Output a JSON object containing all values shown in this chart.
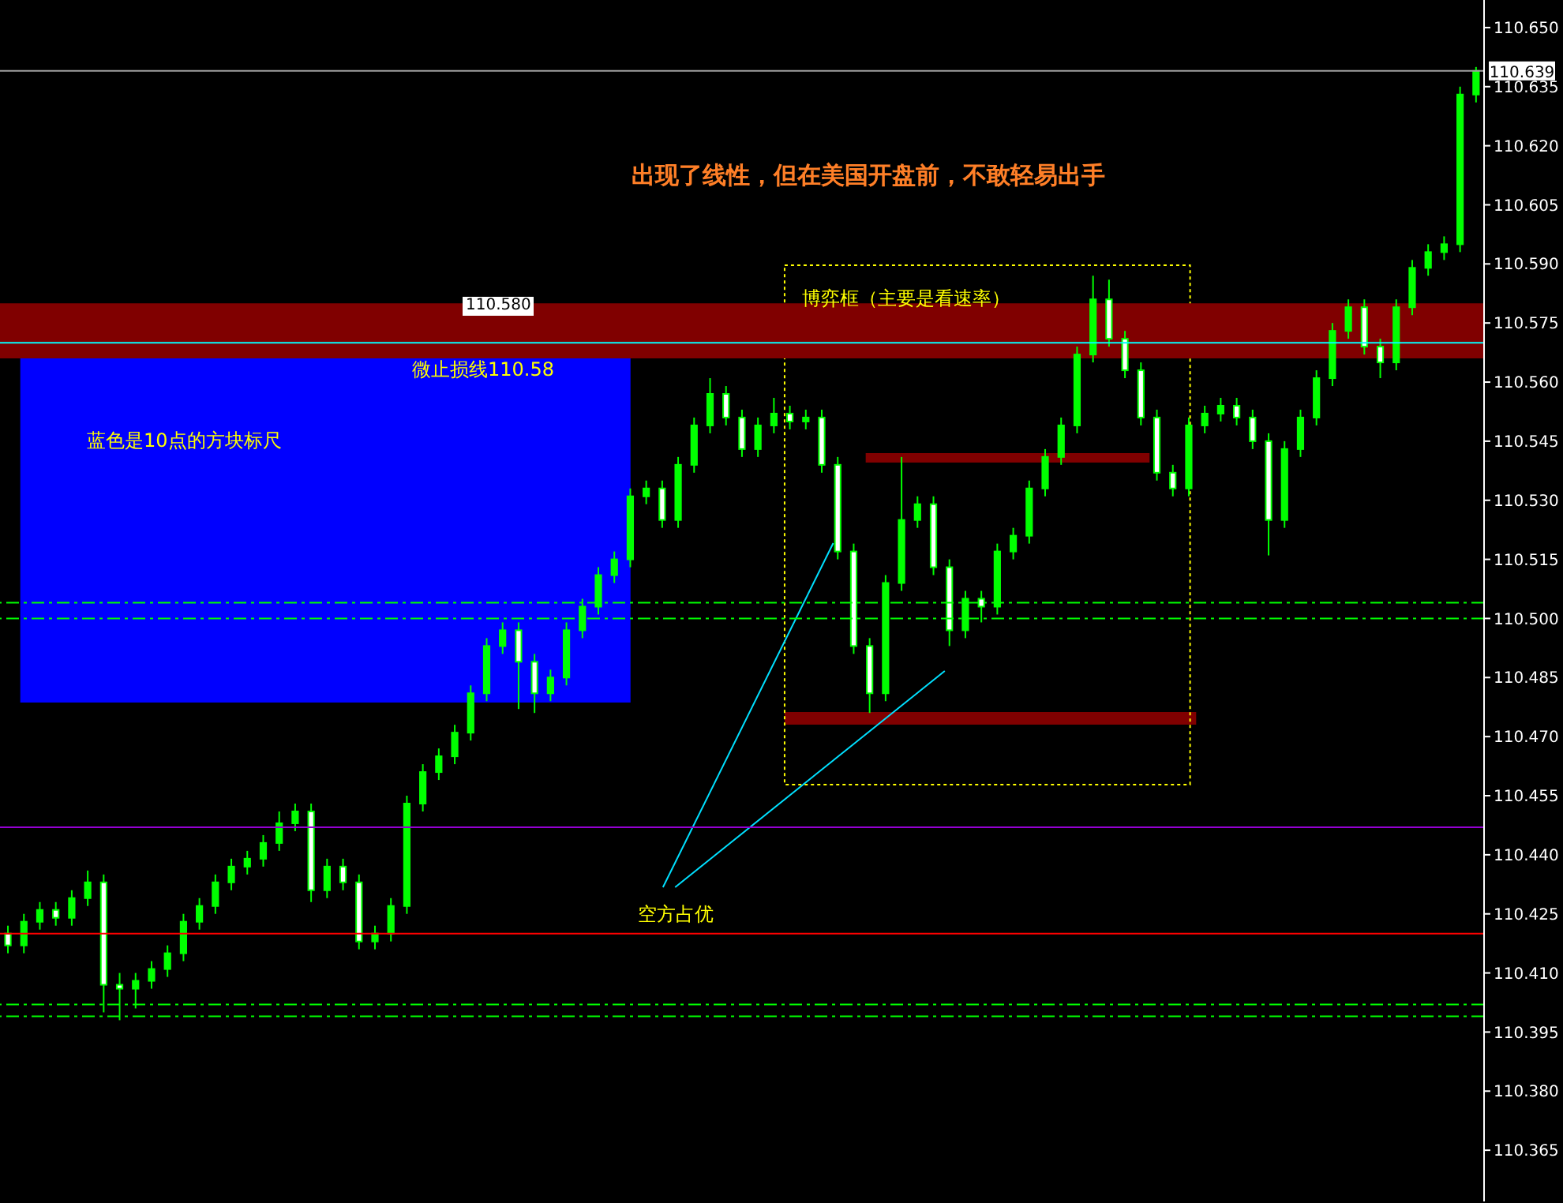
{
  "chart_data": {
    "type": "candlestick",
    "color": "#00ff00",
    "tick_labels": "y",
    "categories": [
      null,
      null,
      null,
      null,
      null,
      null,
      null,
      null,
      null,
      null,
      null,
      null,
      null,
      null,
      null,
      null,
      null,
      null,
      null,
      null,
      null,
      null,
      null,
      null,
      null,
      null,
      null,
      null,
      null,
      null,
      null,
      null,
      null,
      null,
      null,
      null,
      null,
      null,
      null,
      null,
      null,
      null,
      null,
      null,
      null,
      null,
      null,
      null,
      null,
      null,
      null,
      null,
      null,
      null,
      null,
      null,
      null,
      null,
      null,
      null,
      null,
      null,
      null,
      null,
      null,
      null,
      null,
      null,
      null,
      null,
      null,
      null,
      null,
      null,
      null,
      null,
      null,
      null,
      null,
      null,
      null,
      null,
      null,
      null,
      null,
      null,
      null,
      null,
      null,
      null,
      null,
      null,
      null
    ],
    "ohlc": [
      [
        110.42,
        110.422,
        110.415,
        110.417
      ],
      [
        110.417,
        110.425,
        110.415,
        110.423
      ],
      [
        110.423,
        110.428,
        110.421,
        110.426
      ],
      [
        110.426,
        110.428,
        110.422,
        110.424
      ],
      [
        110.424,
        110.431,
        110.422,
        110.429
      ],
      [
        110.429,
        110.436,
        110.427,
        110.433
      ],
      [
        110.433,
        110.435,
        110.4,
        110.407
      ],
      [
        110.407,
        110.41,
        110.398,
        110.406
      ],
      [
        110.406,
        110.41,
        110.401,
        110.408
      ],
      [
        110.408,
        110.413,
        110.406,
        110.411
      ],
      [
        110.411,
        110.417,
        110.409,
        110.415
      ],
      [
        110.415,
        110.425,
        110.413,
        110.423
      ],
      [
        110.423,
        110.429,
        110.421,
        110.427
      ],
      [
        110.427,
        110.435,
        110.425,
        110.433
      ],
      [
        110.433,
        110.439,
        110.431,
        110.437
      ],
      [
        110.437,
        110.441,
        110.435,
        110.439
      ],
      [
        110.439,
        110.445,
        110.437,
        110.443
      ],
      [
        110.443,
        110.451,
        110.441,
        110.448
      ],
      [
        110.448,
        110.453,
        110.446,
        110.451
      ],
      [
        110.451,
        110.453,
        110.428,
        110.431
      ],
      [
        110.431,
        110.439,
        110.429,
        110.437
      ],
      [
        110.437,
        110.439,
        110.431,
        110.433
      ],
      [
        110.433,
        110.435,
        110.416,
        110.418
      ],
      [
        110.418,
        110.422,
        110.416,
        110.42
      ],
      [
        110.42,
        110.429,
        110.418,
        110.427
      ],
      [
        110.427,
        110.455,
        110.425,
        110.453
      ],
      [
        110.453,
        110.463,
        110.451,
        110.461
      ],
      [
        110.461,
        110.467,
        110.459,
        110.465
      ],
      [
        110.465,
        110.473,
        110.463,
        110.471
      ],
      [
        110.471,
        110.483,
        110.469,
        110.481
      ],
      [
        110.481,
        110.495,
        110.479,
        110.493
      ],
      [
        110.493,
        110.499,
        110.491,
        110.497
      ],
      [
        110.497,
        110.499,
        110.477,
        110.489
      ],
      [
        110.489,
        110.491,
        110.476,
        110.481
      ],
      [
        110.481,
        110.487,
        110.479,
        110.485
      ],
      [
        110.485,
        110.499,
        110.483,
        110.497
      ],
      [
        110.497,
        110.505,
        110.495,
        110.503
      ],
      [
        110.503,
        110.513,
        110.501,
        110.511
      ],
      [
        110.511,
        110.517,
        110.509,
        110.515
      ],
      [
        110.515,
        110.533,
        110.513,
        110.531
      ],
      [
        110.531,
        110.535,
        110.529,
        110.533
      ],
      [
        110.533,
        110.535,
        110.523,
        110.525
      ],
      [
        110.525,
        110.541,
        110.523,
        110.539
      ],
      [
        110.539,
        110.551,
        110.537,
        110.549
      ],
      [
        110.549,
        110.561,
        110.547,
        110.557
      ],
      [
        110.557,
        110.559,
        110.549,
        110.551
      ],
      [
        110.551,
        110.553,
        110.541,
        110.543
      ],
      [
        110.543,
        110.551,
        110.541,
        110.549
      ],
      [
        110.549,
        110.556,
        110.547,
        110.552
      ],
      [
        110.552,
        110.554,
        110.548,
        110.55
      ],
      [
        110.55,
        110.553,
        110.548,
        110.551
      ],
      [
        110.551,
        110.553,
        110.537,
        110.539
      ],
      [
        110.539,
        110.541,
        110.515,
        110.517
      ],
      [
        110.517,
        110.519,
        110.491,
        110.493
      ],
      [
        110.493,
        110.495,
        110.476,
        110.481
      ],
      [
        110.481,
        110.511,
        110.479,
        110.509
      ],
      [
        110.509,
        110.541,
        110.507,
        110.525
      ],
      [
        110.525,
        110.531,
        110.523,
        110.529
      ],
      [
        110.529,
        110.531,
        110.511,
        110.513
      ],
      [
        110.513,
        110.515,
        110.493,
        110.497
      ],
      [
        110.497,
        110.507,
        110.495,
        110.505
      ],
      [
        110.505,
        110.507,
        110.499,
        110.503
      ],
      [
        110.503,
        110.519,
        110.501,
        110.517
      ],
      [
        110.517,
        110.523,
        110.515,
        110.521
      ],
      [
        110.521,
        110.535,
        110.519,
        110.533
      ],
      [
        110.533,
        110.543,
        110.531,
        110.541
      ],
      [
        110.541,
        110.551,
        110.539,
        110.549
      ],
      [
        110.549,
        110.569,
        110.547,
        110.567
      ],
      [
        110.567,
        110.587,
        110.565,
        110.581
      ],
      [
        110.581,
        110.586,
        110.569,
        110.571
      ],
      [
        110.571,
        110.573,
        110.561,
        110.563
      ],
      [
        110.563,
        110.565,
        110.549,
        110.551
      ],
      [
        110.551,
        110.553,
        110.535,
        110.537
      ],
      [
        110.537,
        110.539,
        110.531,
        110.533
      ],
      [
        110.533,
        110.551,
        110.531,
        110.549
      ],
      [
        110.549,
        110.554,
        110.547,
        110.552
      ],
      [
        110.552,
        110.556,
        110.55,
        110.554
      ],
      [
        110.554,
        110.556,
        110.549,
        110.551
      ],
      [
        110.551,
        110.553,
        110.543,
        110.545
      ],
      [
        110.545,
        110.547,
        110.516,
        110.525
      ],
      [
        110.525,
        110.545,
        110.523,
        110.543
      ],
      [
        110.543,
        110.553,
        110.541,
        110.551
      ],
      [
        110.551,
        110.563,
        110.549,
        110.561
      ],
      [
        110.561,
        110.575,
        110.559,
        110.573
      ],
      [
        110.573,
        110.581,
        110.571,
        110.579
      ],
      [
        110.579,
        110.581,
        110.567,
        110.569
      ],
      [
        110.569,
        110.571,
        110.561,
        110.565
      ],
      [
        110.565,
        110.581,
        110.563,
        110.579
      ],
      [
        110.579,
        110.591,
        110.577,
        110.589
      ],
      [
        110.589,
        110.595,
        110.587,
        110.593
      ],
      [
        110.593,
        110.597,
        110.591,
        110.595
      ],
      [
        110.595,
        110.635,
        110.593,
        110.633
      ],
      [
        110.633,
        110.64,
        110.631,
        110.639
      ]
    ],
    "ylim": [
      110.352,
      110.657
    ],
    "yticks": [
      {
        "value": 110.365,
        "label": "110.365"
      },
      {
        "value": 110.38,
        "label": "110.380"
      },
      {
        "value": 110.395,
        "label": "110.395"
      },
      {
        "value": 110.41,
        "label": "110.410"
      },
      {
        "value": 110.425,
        "label": "110.425"
      },
      {
        "value": 110.44,
        "label": "110.440"
      },
      {
        "value": 110.455,
        "label": "110.455"
      },
      {
        "value": 110.47,
        "label": "110.470"
      },
      {
        "value": 110.485,
        "label": "110.485"
      },
      {
        "value": 110.5,
        "label": "110.500"
      },
      {
        "value": 110.515,
        "label": "110.515"
      },
      {
        "value": 110.53,
        "label": "110.530"
      },
      {
        "value": 110.545,
        "label": "110.545"
      },
      {
        "value": 110.56,
        "label": "110.560"
      },
      {
        "value": 110.575,
        "label": "110.575"
      },
      {
        "value": 110.59,
        "label": "110.590"
      },
      {
        "value": 110.605,
        "label": "110.605"
      },
      {
        "value": 110.62,
        "label": "110.620"
      },
      {
        "value": 110.635,
        "label": "110.635"
      },
      {
        "value": 110.65,
        "label": "110.650"
      }
    ],
    "bands": [
      {
        "axis": "y",
        "from": 110.566,
        "to": 110.58,
        "color": "#800000"
      }
    ],
    "ref_lines": [
      {
        "axis": "y",
        "value": 110.639,
        "label": "110.639",
        "color": "#a0a0a0"
      },
      {
        "axis": "y",
        "value": 110.57,
        "color": "#00ffff"
      },
      {
        "axis": "y",
        "value": 110.447,
        "color": "#9400d3"
      },
      {
        "axis": "y",
        "value": 110.42,
        "color": "#ff0000"
      },
      {
        "axis": "y",
        "value": 110.504,
        "color": "#00ff00",
        "line_style": "dashed"
      },
      {
        "axis": "y",
        "value": 110.5,
        "color": "#00ff00",
        "line_style": "dashed"
      },
      {
        "axis": "y",
        "value": 110.402,
        "color": "#00ff00",
        "line_style": "dashed"
      },
      {
        "axis": "y",
        "value": 110.399,
        "color": "#00ff00",
        "line_style": "dashed"
      }
    ],
    "annotations": [
      "出现了线性，但在美国开盘前，不敢轻易出手",
      "博弈框（主要是看速率）",
      "110.580",
      "微止损线110.58",
      "蓝色是10点的方块标尺",
      "空方占优"
    ]
  }
}
